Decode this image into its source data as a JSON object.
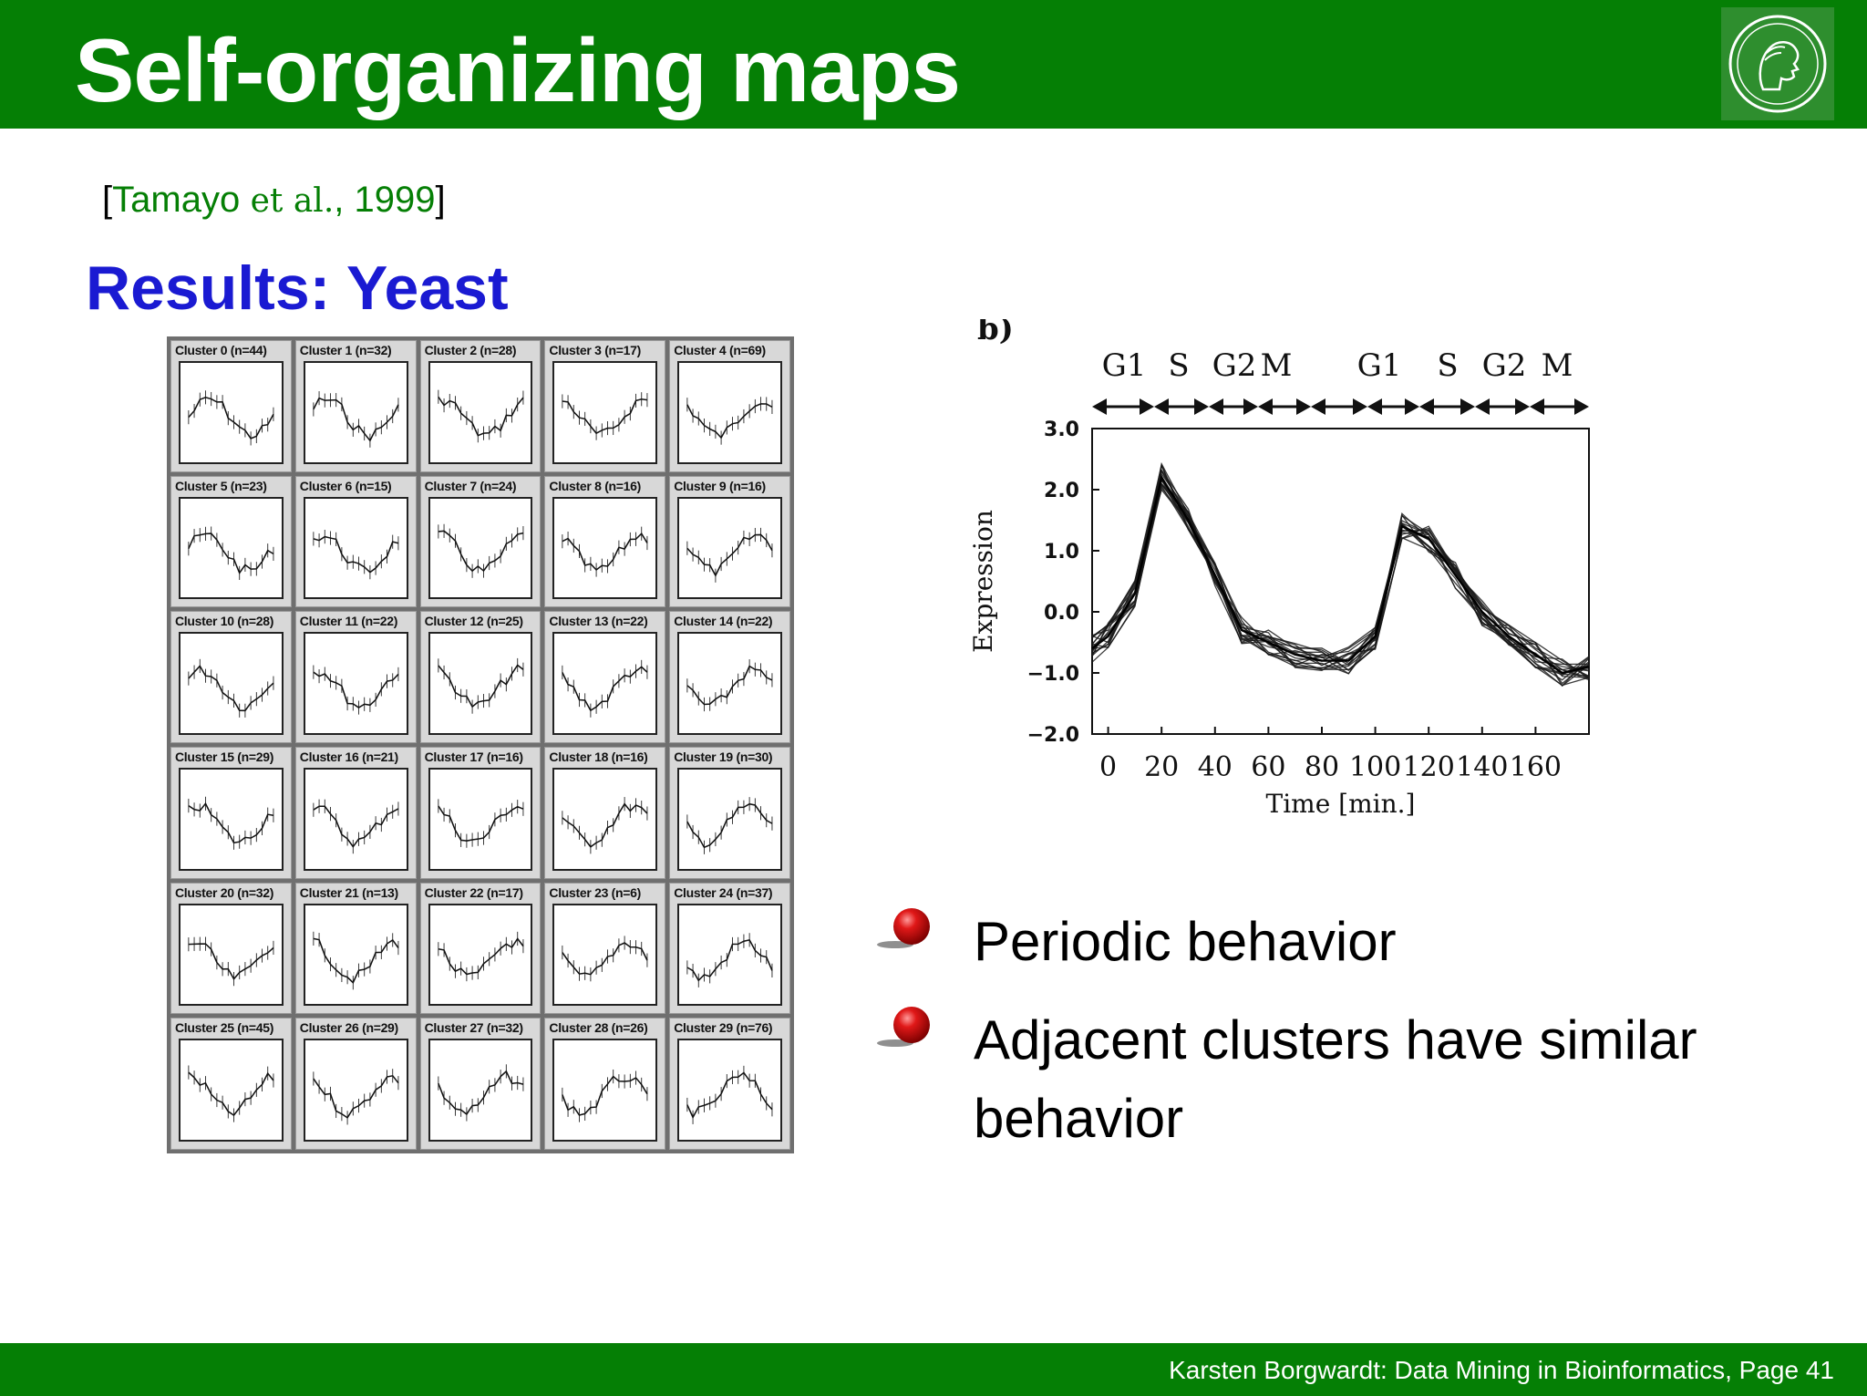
{
  "slide": {
    "title": "Self-organizing maps",
    "citation_open": "[",
    "citation_author": "Tamayo",
    "citation_etal": " et al.",
    "citation_year": ", 1999",
    "citation_close": "]",
    "subtitle": "Results: Yeast",
    "footer": "Karsten Borgwardt: Data Mining in Bioinformatics, Page 41",
    "logo_icon": "minerva-seal-icon"
  },
  "colors": {
    "header_green": "#057f05",
    "subtitle_blue": "#1a1ad2",
    "bullet_red": "#cc1010"
  },
  "clusters": [
    "Cluster 0 (n=44)",
    "Cluster 1 (n=32)",
    "Cluster 2 (n=28)",
    "Cluster 3 (n=17)",
    "Cluster 4 (n=69)",
    "Cluster 5 (n=23)",
    "Cluster 6 (n=15)",
    "Cluster 7 (n=24)",
    "Cluster 8 (n=16)",
    "Cluster 9 (n=16)",
    "Cluster 10 (n=28)",
    "Cluster 11 (n=22)",
    "Cluster 12 (n=25)",
    "Cluster 13 (n=22)",
    "Cluster 14 (n=22)",
    "Cluster 15 (n=29)",
    "Cluster 16 (n=21)",
    "Cluster 17 (n=16)",
    "Cluster 18 (n=16)",
    "Cluster 19 (n=30)",
    "Cluster 20 (n=32)",
    "Cluster 21 (n=13)",
    "Cluster 22 (n=17)",
    "Cluster 23 (n=6)",
    "Cluster 24 (n=37)",
    "Cluster 25 (n=45)",
    "Cluster 26 (n=29)",
    "Cluster 27 (n=32)",
    "Cluster 28 (n=26)",
    "Cluster 29 (n=76)"
  ],
  "chart_data": {
    "type": "line",
    "panel_label": "b)",
    "phases": [
      "G1",
      "S",
      "G2",
      "M",
      "G1",
      "S",
      "G2",
      "M"
    ],
    "xlabel": "Time [min.]",
    "ylabel": "Expression",
    "x_ticks": [
      0,
      20,
      40,
      60,
      80,
      100,
      120,
      140,
      160
    ],
    "y_ticks": [
      "3.0",
      "2.0",
      "1.0",
      "0.0",
      "−1.0",
      "−2.0"
    ],
    "xlim": [
      -6,
      180
    ],
    "ylim": [
      -2.0,
      3.0
    ],
    "x": [
      -6,
      0,
      10,
      20,
      30,
      40,
      50,
      60,
      70,
      80,
      90,
      100,
      110,
      120,
      130,
      140,
      150,
      160,
      170,
      180
    ],
    "series": [
      {
        "values": [
          -0.6,
          -0.4,
          0.3,
          2.2,
          1.5,
          0.6,
          -0.3,
          -0.5,
          -0.7,
          -0.8,
          -0.8,
          -0.4,
          1.4,
          1.2,
          0.6,
          0.0,
          -0.4,
          -0.7,
          -1.0,
          -0.9
        ]
      }
    ],
    "grid": false
  },
  "bullets": [
    {
      "text": "Periodic behavior"
    },
    {
      "text": "Adjacent clusters have similar behavior"
    }
  ]
}
